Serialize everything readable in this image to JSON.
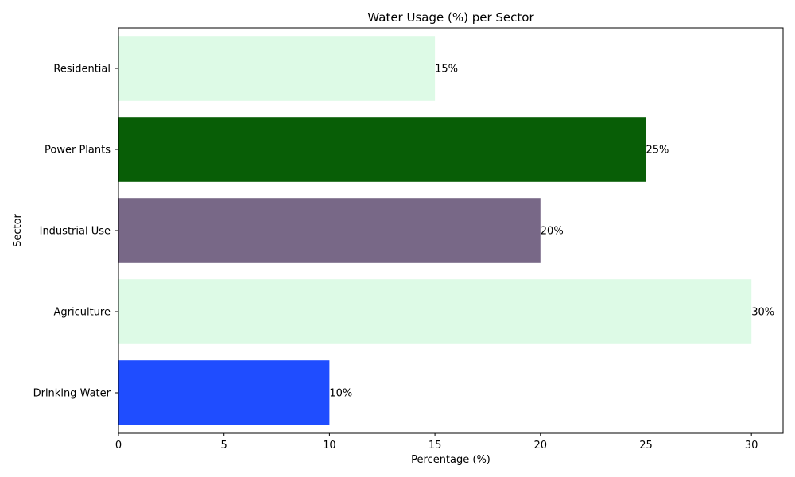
{
  "chart_data": {
    "type": "bar",
    "orientation": "horizontal",
    "title": "Water Usage (%) per Sector",
    "xlabel": "Percentage (%)",
    "ylabel": "Sector",
    "categories": [
      "Drinking Water",
      "Agriculture",
      "Industrial Use",
      "Power Plants",
      "Residential"
    ],
    "values": [
      10,
      30,
      20,
      25,
      15
    ],
    "value_labels": [
      "10%",
      "30%",
      "20%",
      "25%",
      "15%"
    ],
    "colors": [
      "#1f4dff",
      "#ddfae6",
      "#786887",
      "#085e06",
      "#ddfae6"
    ],
    "xlim": [
      0,
      31.5
    ],
    "xticks": [
      0,
      5,
      10,
      15,
      20,
      25,
      30
    ],
    "grid": false,
    "legend": "none"
  }
}
